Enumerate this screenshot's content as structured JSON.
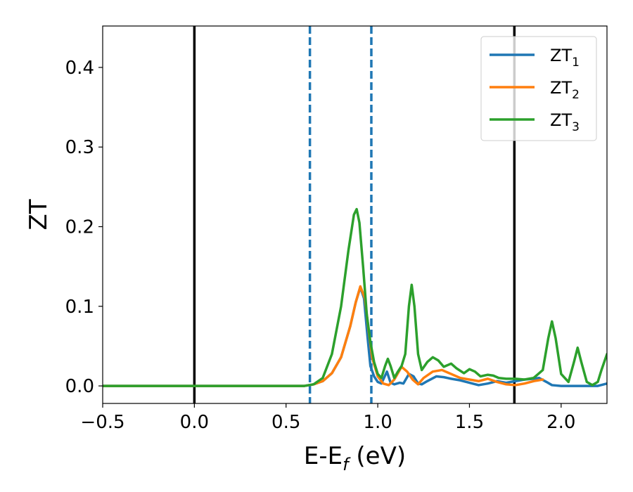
{
  "chart_data": {
    "type": "line",
    "xlabel": "E-E",
    "xlabel_subscript": "f",
    "xlabel_suffix": " (eV)",
    "ylabel": "ZT",
    "xlim": [
      -0.5,
      2.25
    ],
    "ylim": [
      -0.022,
      0.452
    ],
    "xticks": [
      -0.5,
      0.0,
      0.5,
      1.0,
      1.5,
      2.0
    ],
    "xtick_labels": [
      "−0.5",
      "0.0",
      "0.5",
      "1.0",
      "1.5",
      "2.0"
    ],
    "yticks": [
      0.0,
      0.1,
      0.2,
      0.3,
      0.4
    ],
    "ytick_labels": [
      "0.0",
      "0.1",
      "0.2",
      "0.3",
      "0.4"
    ],
    "grid": false,
    "legend_position": "top-right",
    "vertical_lines": [
      {
        "x": 0.0,
        "style": "solid",
        "color": "#000000"
      },
      {
        "x": 1.745,
        "style": "solid",
        "color": "#000000"
      },
      {
        "x": 0.63,
        "style": "dashed",
        "color": "#1f77b4"
      },
      {
        "x": 0.965,
        "style": "dashed",
        "color": "#1f77b4"
      }
    ],
    "series": [
      {
        "name": "ZT",
        "name_subscript": "1",
        "color": "#1f77b4",
        "points": [
          [
            -0.5,
            0
          ],
          [
            0.6,
            0
          ],
          [
            0.65,
            0.002
          ],
          [
            0.7,
            0.006
          ],
          [
            0.75,
            0.016
          ],
          [
            0.8,
            0.036
          ],
          [
            0.85,
            0.075
          ],
          [
            0.88,
            0.105
          ],
          [
            0.905,
            0.124
          ],
          [
            0.925,
            0.11
          ],
          [
            0.945,
            0.06
          ],
          [
            0.96,
            0.025
          ],
          [
            0.98,
            0.012
          ],
          [
            1.0,
            0.005
          ],
          [
            1.02,
            0.003
          ],
          [
            1.05,
            0.018
          ],
          [
            1.07,
            0.004
          ],
          [
            1.09,
            0.002
          ],
          [
            1.12,
            0.004
          ],
          [
            1.14,
            0.003
          ],
          [
            1.17,
            0.015
          ],
          [
            1.195,
            0.012
          ],
          [
            1.22,
            0.003
          ],
          [
            1.24,
            0.002
          ],
          [
            1.27,
            0.006
          ],
          [
            1.32,
            0.012
          ],
          [
            1.36,
            0.011
          ],
          [
            1.4,
            0.009
          ],
          [
            1.45,
            0.007
          ],
          [
            1.5,
            0.004
          ],
          [
            1.55,
            0.001
          ],
          [
            1.6,
            0.003
          ],
          [
            1.65,
            0.006
          ],
          [
            1.7,
            0.004
          ],
          [
            1.75,
            0.006
          ],
          [
            1.8,
            0.008
          ],
          [
            1.85,
            0.009
          ],
          [
            1.88,
            0.01
          ],
          [
            1.92,
            0.005
          ],
          [
            1.95,
            0.001
          ],
          [
            2.0,
            0
          ],
          [
            2.1,
            0
          ],
          [
            2.2,
            0
          ],
          [
            2.25,
            0.003
          ]
        ]
      },
      {
        "name": "ZT",
        "name_subscript": "2",
        "color": "#ff7f0e",
        "points": [
          [
            -0.5,
            0
          ],
          [
            0.6,
            0
          ],
          [
            0.65,
            0.002
          ],
          [
            0.7,
            0.006
          ],
          [
            0.75,
            0.016
          ],
          [
            0.8,
            0.036
          ],
          [
            0.85,
            0.075
          ],
          [
            0.88,
            0.105
          ],
          [
            0.905,
            0.125
          ],
          [
            0.93,
            0.11
          ],
          [
            0.95,
            0.07
          ],
          [
            0.97,
            0.035
          ],
          [
            1.0,
            0.012
          ],
          [
            1.03,
            0.003
          ],
          [
            1.06,
            0.001
          ],
          [
            1.09,
            0.008
          ],
          [
            1.13,
            0.024
          ],
          [
            1.16,
            0.018
          ],
          [
            1.19,
            0.008
          ],
          [
            1.22,
            0.002
          ],
          [
            1.25,
            0.01
          ],
          [
            1.3,
            0.018
          ],
          [
            1.35,
            0.02
          ],
          [
            1.4,
            0.015
          ],
          [
            1.45,
            0.01
          ],
          [
            1.5,
            0.008
          ],
          [
            1.55,
            0.006
          ],
          [
            1.6,
            0.009
          ],
          [
            1.65,
            0.005
          ],
          [
            1.7,
            0.002
          ],
          [
            1.75,
            0.001
          ],
          [
            1.8,
            0.003
          ],
          [
            1.85,
            0.006
          ],
          [
            1.9,
            0.008
          ]
        ]
      },
      {
        "name": "ZT",
        "name_subscript": "3",
        "color": "#2ca02c",
        "points": [
          [
            -0.5,
            0
          ],
          [
            0.6,
            0
          ],
          [
            0.65,
            0.002
          ],
          [
            0.7,
            0.01
          ],
          [
            0.75,
            0.04
          ],
          [
            0.8,
            0.1
          ],
          [
            0.84,
            0.17
          ],
          [
            0.87,
            0.215
          ],
          [
            0.885,
            0.222
          ],
          [
            0.9,
            0.205
          ],
          [
            0.92,
            0.15
          ],
          [
            0.94,
            0.09
          ],
          [
            0.96,
            0.055
          ],
          [
            0.98,
            0.03
          ],
          [
            1.0,
            0.015
          ],
          [
            1.02,
            0.01
          ],
          [
            1.04,
            0.025
          ],
          [
            1.055,
            0.034
          ],
          [
            1.07,
            0.025
          ],
          [
            1.09,
            0.01
          ],
          [
            1.11,
            0.018
          ],
          [
            1.13,
            0.025
          ],
          [
            1.15,
            0.04
          ],
          [
            1.17,
            0.1
          ],
          [
            1.185,
            0.127
          ],
          [
            1.2,
            0.1
          ],
          [
            1.22,
            0.04
          ],
          [
            1.24,
            0.02
          ],
          [
            1.27,
            0.03
          ],
          [
            1.3,
            0.036
          ],
          [
            1.33,
            0.032
          ],
          [
            1.36,
            0.024
          ],
          [
            1.4,
            0.028
          ],
          [
            1.43,
            0.022
          ],
          [
            1.47,
            0.016
          ],
          [
            1.5,
            0.021
          ],
          [
            1.53,
            0.018
          ],
          [
            1.56,
            0.012
          ],
          [
            1.6,
            0.014
          ],
          [
            1.63,
            0.013
          ],
          [
            1.66,
            0.01
          ],
          [
            1.7,
            0.009
          ],
          [
            1.75,
            0.009
          ],
          [
            1.8,
            0.008
          ],
          [
            1.85,
            0.01
          ],
          [
            1.9,
            0.02
          ],
          [
            1.93,
            0.06
          ],
          [
            1.95,
            0.081
          ],
          [
            1.97,
            0.06
          ],
          [
            2.0,
            0.015
          ],
          [
            2.04,
            0.005
          ],
          [
            2.07,
            0.03
          ],
          [
            2.09,
            0.048
          ],
          [
            2.11,
            0.03
          ],
          [
            2.14,
            0.005
          ],
          [
            2.17,
            0.001
          ],
          [
            2.2,
            0.005
          ],
          [
            2.22,
            0.02
          ],
          [
            2.25,
            0.04
          ]
        ]
      }
    ]
  }
}
